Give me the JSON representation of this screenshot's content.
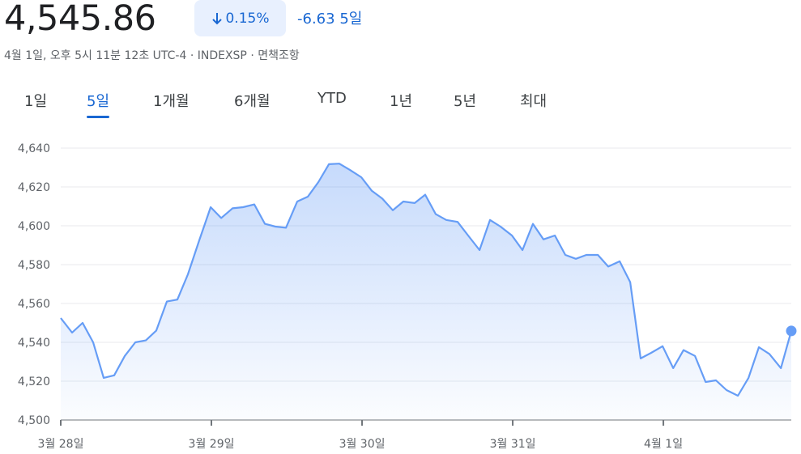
{
  "header": {
    "price": "4,545.86",
    "change_percent": "0.15%",
    "change": "-6.63",
    "period": "5일",
    "subtitle": "4월 1일, 오후 5시 11분 12초 UTC-4 · INDEXSP · 면책조항"
  },
  "tabs": {
    "items": [
      "1일",
      "5일",
      "1개월",
      "6개월",
      "YTD",
      "1년",
      "5년",
      "최대"
    ],
    "selected": 1
  },
  "chart_data": {
    "type": "area",
    "color": "#669df6",
    "grid": true,
    "x": [
      0,
      0.075,
      0.145,
      0.215,
      0.285,
      0.355,
      0.425,
      0.495,
      0.565,
      0.634,
      0.704,
      0.774,
      0.844,
      0.919,
      0.995,
      1.065,
      1.14,
      1.21,
      1.285,
      1.355,
      1.425,
      1.495,
      1.57,
      1.64,
      1.71,
      1.78,
      1.849,
      1.919,
      1.995,
      2.065,
      2.134,
      2.204,
      2.274,
      2.349,
      2.419,
      2.489,
      2.559,
      2.634,
      2.704,
      2.78,
      2.849,
      2.919,
      2.995,
      3.065,
      3.134,
      3.204,
      3.28,
      3.349,
      3.419,
      3.489,
      3.565,
      3.634,
      3.71,
      3.78,
      3.849,
      3.919,
      3.995,
      4.065,
      4.134,
      4.21,
      4.28,
      4.349,
      4.419,
      4.495,
      4.565,
      4.634,
      4.704,
      4.78,
      4.849
    ],
    "values": [
      4552.5,
      4545,
      4550,
      4540,
      4521.7,
      4523,
      4533,
      4540,
      4541,
      4546,
      4561,
      4562,
      4575,
      4592.5,
      4609.6,
      4604,
      4609,
      4609.6,
      4611,
      4601,
      4599.6,
      4599,
      4612.5,
      4615,
      4622.5,
      4631.7,
      4632,
      4628.8,
      4625,
      4618,
      4614,
      4608,
      4612.5,
      4611.7,
      4616,
      4606,
      4603,
      4602,
      4595,
      4587.5,
      4603,
      4599.6,
      4595,
      4587.5,
      4601,
      4593,
      4595,
      4585,
      4583,
      4585,
      4585,
      4579,
      4581.7,
      4571,
      4531.7,
      4534.6,
      4538,
      4526.7,
      4536,
      4533,
      4519.6,
      4520.4,
      4515.4,
      4512.5,
      4521.7,
      4537.5,
      4534,
      4526.7,
      4545.86
    ],
    "xlim": [
      0,
      4.849
    ],
    "xticks": [
      {
        "value": 0,
        "label": "3월 28일"
      },
      {
        "value": 1,
        "label": "3월 29일"
      },
      {
        "value": 2,
        "label": "3월 30일"
      },
      {
        "value": 3,
        "label": "3월 31일"
      },
      {
        "value": 4,
        "label": "4월 1일"
      }
    ],
    "ylim": [
      4500,
      4640
    ],
    "yticks": [
      {
        "value": 4500,
        "label": "4,500"
      },
      {
        "value": 4520,
        "label": "4,520"
      },
      {
        "value": 4540,
        "label": "4,540"
      },
      {
        "value": 4560,
        "label": "4,560"
      },
      {
        "value": 4580,
        "label": "4,580"
      },
      {
        "value": 4600,
        "label": "4,600"
      },
      {
        "value": 4620,
        "label": "4,620"
      },
      {
        "value": 4640,
        "label": "4,640"
      }
    ]
  }
}
